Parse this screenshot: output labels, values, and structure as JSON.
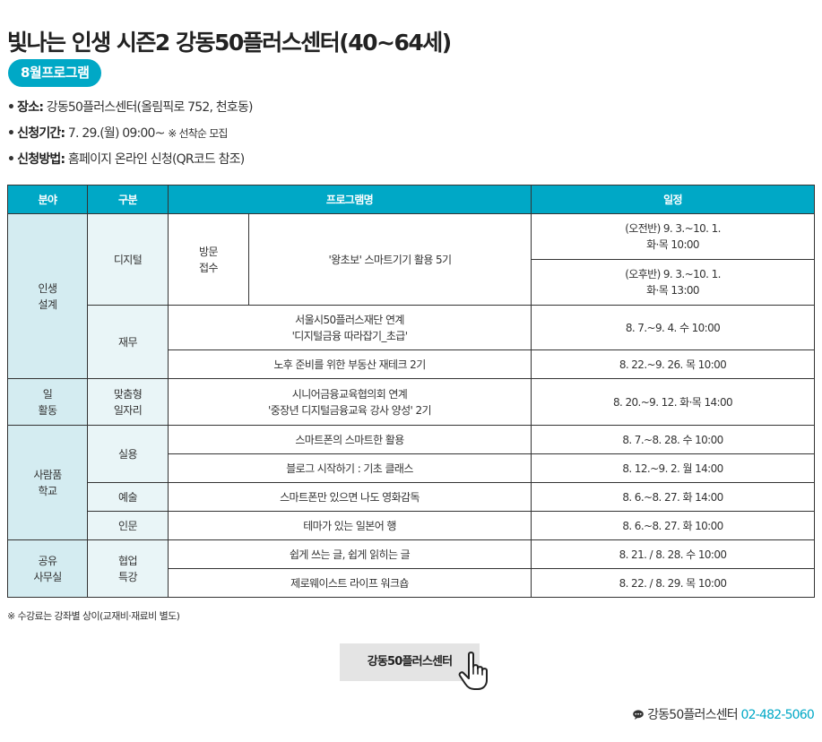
{
  "header": {
    "title": "빛나는 인생 시즌2 강동50플러스센터(40~64세)",
    "badge": "8월프로그램"
  },
  "info": {
    "bullet": "•",
    "location_label": "장소:",
    "location_value": " 강동50플러스센터(올림픽로 752, 천호동)",
    "period_label": "신청기간:",
    "period_value": " 7. 29.(월) 09:00~ ",
    "period_note": "※ 선착순 모집",
    "method_label": "신청방법:",
    "method_value": " 홈페이지 온라인 신청(QR코드 참조)"
  },
  "table": {
    "headers": [
      "분야",
      "구분",
      "프로그램명",
      "일정"
    ],
    "groups": {
      "life_design": "인생\n설계",
      "work": "일\n활동",
      "school": "사람품\n학교",
      "office": "공유\n사무실"
    },
    "subs": {
      "digital": "디지털",
      "visit": "방문\n접수",
      "finance": "재무",
      "job": "맞춤형\n일자리",
      "practical": "실용",
      "art": "예술",
      "humanities": "인문",
      "special": "협업\n특강"
    },
    "rows": [
      {
        "name": "'왕초보' 스마트기기 활용 5기",
        "schedule": "(오전반) 9. 3.~10. 1.\n화·목 10:00"
      },
      {
        "schedule": "(오후반) 9. 3.~10. 1.\n화·목 13:00"
      },
      {
        "name": "서울시50플러스재단 연계\n'디지털금융 따라잡기_초급'",
        "schedule": "8. 7.~9. 4. 수 10:00"
      },
      {
        "name": "노후 준비를 위한 부동산 재테크 2기",
        "schedule": "8. 22.~9. 26. 목 10:00"
      },
      {
        "name": "시니어금융교육협의회 연계\n'중장년 디지털금융교육 강사 양성' 2기",
        "schedule": "8. 20.~9. 12. 화·목 14:00"
      },
      {
        "name": "스마트폰의 스마트한 활용",
        "schedule": "8. 7.~8. 28. 수 10:00"
      },
      {
        "name": "블로그 시작하기 : 기초 클래스",
        "schedule": "8. 12.~9. 2. 월 14:00"
      },
      {
        "name": "스마트폰만 있으면 나도 영화감독",
        "schedule": "8. 6.~8. 27. 화 14:00"
      },
      {
        "name": "테마가 있는 일본어 행",
        "schedule": "8. 6.~8. 27. 화 10:00"
      },
      {
        "name": "쉽게 쓰는 글, 쉽게 읽히는 글",
        "schedule": "8. 21. / 8. 28. 수 10:00"
      },
      {
        "name": "제로웨이스트 라이프 워크숍",
        "schedule": "8. 22. / 8. 29. 목 10:00"
      }
    ]
  },
  "footnote": "※ 수강료는 강좌별 상이(교재비·재료비 별도)",
  "button": {
    "label": "강동50플러스센터",
    "icon": "pointing-hand-icon"
  },
  "contact": {
    "icon": "chat-bubble-icon",
    "name": "강동50플러스센터 ",
    "phone": "02-482-5060"
  },
  "colors": {
    "accent": "#00a8c6",
    "area_bg": "#d4ecf1",
    "sub_bg": "#e9f5f7",
    "button_bg": "#e4e4e4"
  }
}
